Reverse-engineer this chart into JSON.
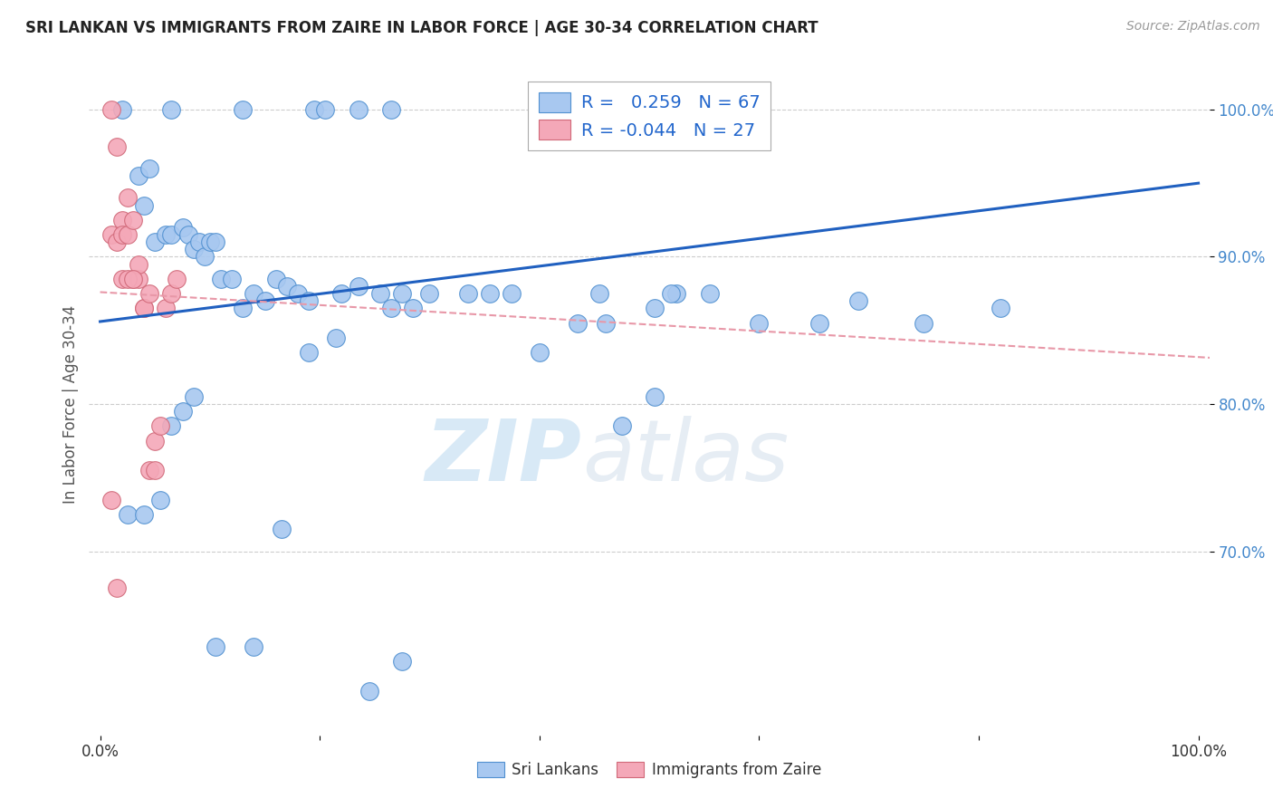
{
  "title": "SRI LANKAN VS IMMIGRANTS FROM ZAIRE IN LABOR FORCE | AGE 30-34 CORRELATION CHART",
  "source": "Source: ZipAtlas.com",
  "ylabel": "In Labor Force | Age 30-34",
  "watermark_zip": "ZIP",
  "watermark_atlas": "atlas",
  "xlim": [
    -0.01,
    1.01
  ],
  "ylim": [
    0.575,
    1.025
  ],
  "ytick_positions": [
    0.7,
    0.8,
    0.9,
    1.0
  ],
  "ytick_labels": [
    "70.0%",
    "80.0%",
    "90.0%",
    "100.0%"
  ],
  "xtick_positions": [
    0.0,
    0.2,
    0.4,
    0.6,
    0.8,
    1.0
  ],
  "xticklabels": [
    "0.0%",
    "",
    "",
    "",
    "",
    "100.0%"
  ],
  "blue_R": "0.259",
  "blue_N": "67",
  "pink_R": "-0.044",
  "pink_N": "27",
  "blue_color": "#a8c8f0",
  "pink_color": "#f4a8b8",
  "blue_edge_color": "#5090d0",
  "pink_edge_color": "#d06878",
  "blue_line_color": "#2060c0",
  "pink_line_color": "#e898a8",
  "legend_blue_label": "Sri Lankans",
  "legend_pink_label": "Immigrants from Zaire",
  "blue_scatter_x": [
    0.02,
    0.065,
    0.13,
    0.195,
    0.205,
    0.235,
    0.265,
    0.035,
    0.04,
    0.045,
    0.05,
    0.06,
    0.065,
    0.075,
    0.08,
    0.085,
    0.09,
    0.095,
    0.1,
    0.105,
    0.11,
    0.12,
    0.13,
    0.14,
    0.15,
    0.16,
    0.17,
    0.18,
    0.19,
    0.22,
    0.235,
    0.255,
    0.265,
    0.275,
    0.285,
    0.3,
    0.335,
    0.355,
    0.375,
    0.4,
    0.435,
    0.455,
    0.46,
    0.505,
    0.525,
    0.555,
    0.475,
    0.505,
    0.52,
    0.6,
    0.655,
    0.69,
    0.75,
    0.82,
    0.025,
    0.04,
    0.055,
    0.065,
    0.075,
    0.085,
    0.105,
    0.14,
    0.165,
    0.19,
    0.215,
    0.245,
    0.275
  ],
  "blue_scatter_y": [
    1.0,
    1.0,
    1.0,
    1.0,
    1.0,
    1.0,
    1.0,
    0.955,
    0.935,
    0.96,
    0.91,
    0.915,
    0.915,
    0.92,
    0.915,
    0.905,
    0.91,
    0.9,
    0.91,
    0.91,
    0.885,
    0.885,
    0.865,
    0.875,
    0.87,
    0.885,
    0.88,
    0.875,
    0.87,
    0.875,
    0.88,
    0.875,
    0.865,
    0.875,
    0.865,
    0.875,
    0.875,
    0.875,
    0.875,
    0.835,
    0.855,
    0.875,
    0.855,
    0.865,
    0.875,
    0.875,
    0.785,
    0.805,
    0.875,
    0.855,
    0.855,
    0.87,
    0.855,
    0.865,
    0.725,
    0.725,
    0.735,
    0.785,
    0.795,
    0.805,
    0.635,
    0.635,
    0.715,
    0.835,
    0.845,
    0.605,
    0.625
  ],
  "pink_scatter_x": [
    0.01,
    0.015,
    0.02,
    0.025,
    0.02,
    0.025,
    0.03,
    0.03,
    0.035,
    0.035,
    0.04,
    0.04,
    0.045,
    0.045,
    0.05,
    0.05,
    0.055,
    0.06,
    0.065,
    0.07,
    0.01,
    0.015,
    0.02,
    0.025,
    0.03,
    0.01,
    0.015
  ],
  "pink_scatter_y": [
    0.915,
    0.91,
    0.925,
    0.94,
    0.915,
    0.915,
    0.925,
    0.885,
    0.885,
    0.895,
    0.865,
    0.865,
    0.875,
    0.755,
    0.755,
    0.775,
    0.785,
    0.865,
    0.875,
    0.885,
    1.0,
    0.975,
    0.885,
    0.885,
    0.885,
    0.735,
    0.675
  ],
  "blue_trend_x": [
    0.0,
    1.0
  ],
  "blue_trend_y": [
    0.856,
    0.95
  ],
  "pink_trend_x": [
    0.0,
    1.02
  ],
  "pink_trend_y": [
    0.876,
    0.831
  ]
}
